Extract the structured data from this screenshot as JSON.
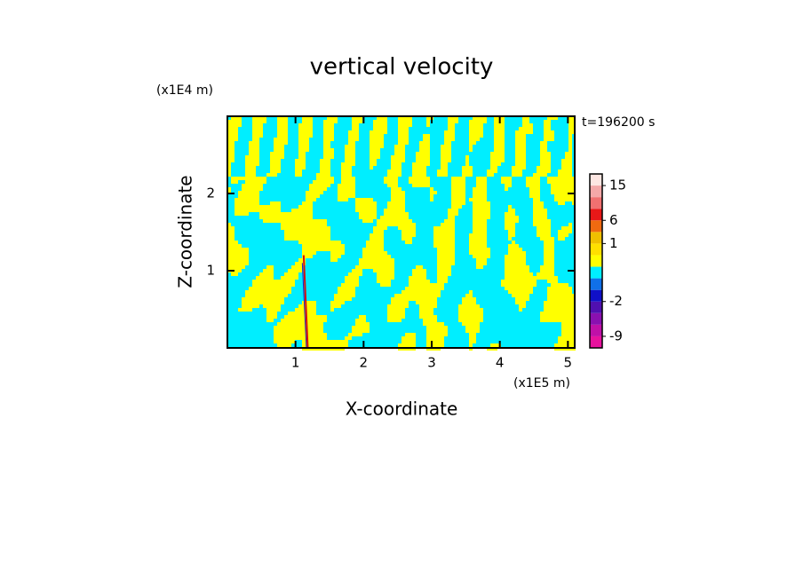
{
  "chart_data": {
    "type": "contour",
    "title": "vertical velocity",
    "x_label": "X-coordinate",
    "y_label": "Z-coordinate",
    "x_unit": "(x1E5 m)",
    "y_unit": "(x1E4 m)",
    "time_label": "t=196200 s",
    "xlim": [
      0,
      5.1
    ],
    "xticks": [
      1,
      2,
      3,
      4,
      5
    ],
    "ylim": [
      0,
      3
    ],
    "yticks": [
      1,
      2
    ],
    "field_colors": [
      "#00eeff",
      "#ffff00"
    ],
    "colorbar": {
      "levels": [
        -12,
        -9,
        -6,
        -3,
        -2,
        -1,
        -0.5,
        0,
        0.5,
        1,
        3,
        6,
        9,
        12,
        15,
        20
      ],
      "colors": [
        "#e8129e",
        "#c010a8",
        "#8a10b0",
        "#5010b0",
        "#1010c8",
        "#1070e8",
        "#00eeff",
        "#ffff00",
        "#ffe000",
        "#f0c000",
        "#f06a10",
        "#e81818",
        "#f07070",
        "#f4a8a8",
        "#fde6e2"
      ],
      "ticks": [
        -9,
        -2,
        1,
        6,
        15
      ]
    }
  }
}
